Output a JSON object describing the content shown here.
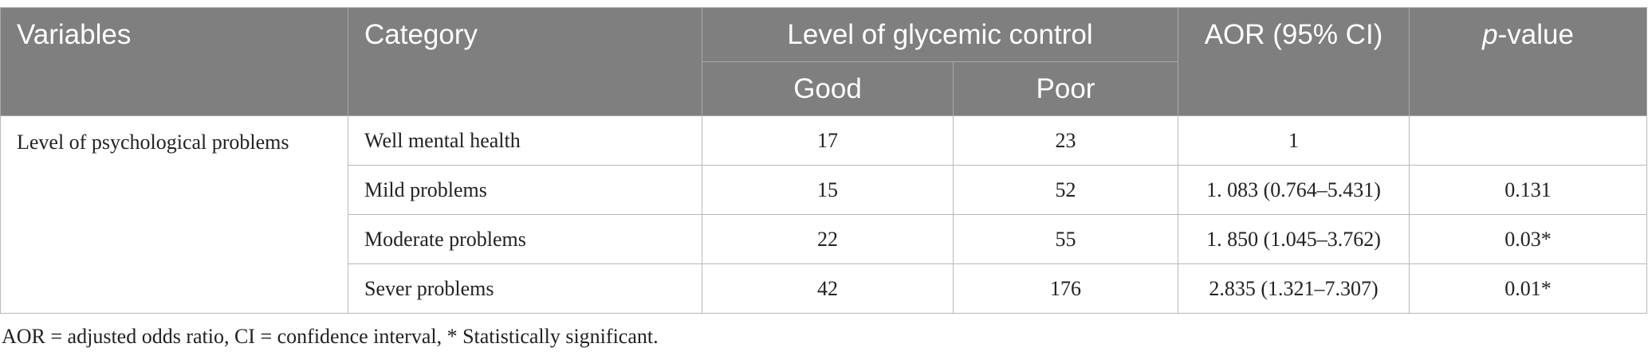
{
  "table": {
    "headers": {
      "variables": "Variables",
      "category": "Category",
      "group": "Level of glycemic control",
      "good": "Good",
      "poor": "Poor",
      "aor": "AOR (95% CI)",
      "p_value": {
        "italic": "p",
        "text": "-value"
      }
    },
    "variable": "Level of psychological problems",
    "rows": [
      [
        "Well mental health",
        "17",
        "23",
        "1",
        null
      ],
      [
        "Mild problems",
        "15",
        "52",
        "1. 083 (0.764–5.431)",
        "0.131"
      ],
      [
        "Moderate problems",
        "22",
        "55",
        "1. 850 (1.045–3.762)",
        "0.03*"
      ],
      [
        "Sever problems",
        "42",
        "176",
        "2.835 (1.321–7.307)",
        "0.01*"
      ]
    ]
  },
  "footnote": "AOR = adjusted odds ratio, CI = confidence interval, * Statistically significant."
}
